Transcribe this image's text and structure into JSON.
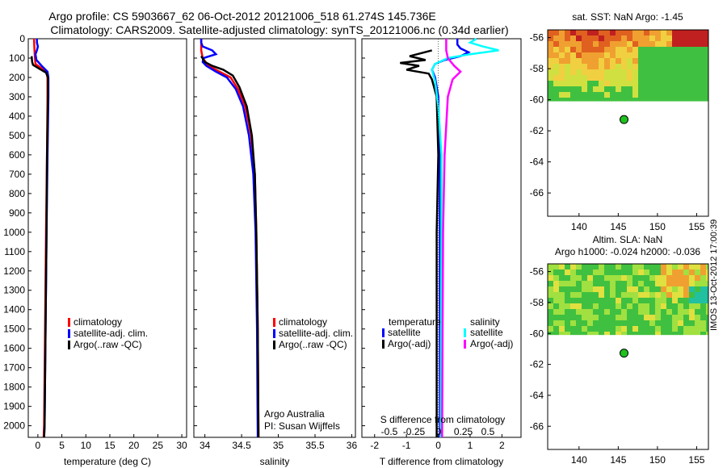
{
  "header": {
    "title_line1": "Argo profile: CS 5903667_62 06-Oct-2012 20121006_518 61.274S 145.736E",
    "title_line2": "Climatology: CARS2009. Satellite-adjusted climatology: synTS_20121006.nc (0.34d earlier)"
  },
  "colors": {
    "climatology": "#ff0000",
    "satellite": "#0000ff",
    "argo": "#000000",
    "cyan": "#00ffff",
    "magenta": "#ff00ff"
  },
  "chart_data": [
    {
      "type": "line",
      "id": "temperature",
      "xlabel": "temperature (deg C)",
      "xlim": [
        -2,
        31
      ],
      "xticks": [
        0,
        5,
        10,
        15,
        20,
        25,
        30
      ],
      "ylim": [
        0,
        2060
      ],
      "yticks": [
        0,
        100,
        200,
        300,
        400,
        500,
        600,
        700,
        800,
        900,
        1000,
        1100,
        1200,
        1300,
        1400,
        1500,
        1600,
        1700,
        1800,
        1900,
        2000
      ],
      "legend": [
        "climatology",
        "satellite-adj. clim.",
        "Argo(..raw -QC)"
      ],
      "series": [
        {
          "name": "climatology",
          "color": "#ff0000",
          "points": [
            [
              -0.8,
              0
            ],
            [
              -0.7,
              60
            ],
            [
              -0.6,
              100
            ],
            [
              -0.5,
              130
            ],
            [
              0.6,
              150
            ],
            [
              1.8,
              175
            ],
            [
              2.0,
              200
            ],
            [
              2.0,
              300
            ],
            [
              1.9,
              600
            ],
            [
              1.7,
              1000
            ],
            [
              1.5,
              1500
            ],
            [
              1.3,
              2000
            ],
            [
              1.2,
              2060
            ]
          ]
        },
        {
          "name": "satellite-adj. clim.",
          "color": "#0000ff",
          "points": [
            [
              -0.2,
              0
            ],
            [
              -0.2,
              20
            ],
            [
              0,
              40
            ],
            [
              -0.2,
              60
            ],
            [
              -0.5,
              80
            ],
            [
              -0.3,
              110
            ],
            [
              0.8,
              140
            ],
            [
              2.0,
              170
            ],
            [
              2.2,
              200
            ],
            [
              2.2,
              300
            ],
            [
              2.0,
              600
            ],
            [
              1.8,
              1000
            ],
            [
              1.6,
              1500
            ],
            [
              1.4,
              2000
            ],
            [
              1.3,
              2060
            ]
          ]
        },
        {
          "name": "Argo(..raw -QC)",
          "color": "#000000",
          "points": [
            [
              -1.3,
              90
            ],
            [
              -1.2,
              120
            ],
            [
              -1.0,
              135
            ],
            [
              0.3,
              155
            ],
            [
              1.7,
              175
            ],
            [
              2.1,
              200
            ],
            [
              2.1,
              300
            ],
            [
              1.9,
              600
            ],
            [
              1.8,
              1000
            ],
            [
              1.6,
              1500
            ],
            [
              1.4,
              2000
            ],
            [
              1.3,
              2060
            ]
          ]
        }
      ]
    },
    {
      "type": "line",
      "id": "salinity",
      "xlabel": "salinity",
      "xlim": [
        33.85,
        36.05
      ],
      "xticks": [
        34,
        34.5,
        35,
        35.5,
        36
      ],
      "ylim": [
        0,
        2060
      ],
      "legend": [
        "climatology",
        "satellite-adj. clim.",
        "Argo(..raw -QC)"
      ],
      "annotations": [
        "Argo Australia",
        "PI: Susan Wijffels"
      ],
      "series": [
        {
          "name": "climatology",
          "color": "#ff0000",
          "points": [
            [
              33.95,
              0
            ],
            [
              33.95,
              60
            ],
            [
              33.97,
              100
            ],
            [
              34.05,
              140
            ],
            [
              34.2,
              170
            ],
            [
              34.35,
              200
            ],
            [
              34.45,
              260
            ],
            [
              34.55,
              350
            ],
            [
              34.63,
              500
            ],
            [
              34.68,
              700
            ],
            [
              34.7,
              1000
            ],
            [
              34.72,
              1500
            ],
            [
              34.73,
              2060
            ]
          ]
        },
        {
          "name": "satellite-adj. clim.",
          "color": "#0000ff",
          "points": [
            [
              33.95,
              0
            ],
            [
              33.95,
              20
            ],
            [
              33.97,
              40
            ],
            [
              34.1,
              60
            ],
            [
              34.15,
              80
            ],
            [
              33.98,
              100
            ],
            [
              33.97,
              120
            ],
            [
              34.02,
              140
            ],
            [
              34.15,
              170
            ],
            [
              34.3,
              200
            ],
            [
              34.42,
              260
            ],
            [
              34.52,
              350
            ],
            [
              34.6,
              500
            ],
            [
              34.66,
              700
            ],
            [
              34.69,
              1000
            ],
            [
              34.71,
              1500
            ],
            [
              34.72,
              2060
            ]
          ]
        },
        {
          "name": "Argo(..raw -QC)",
          "color": "#000000",
          "points": [
            [
              33.95,
              90
            ],
            [
              34.0,
              120
            ],
            [
              34.1,
              140
            ],
            [
              34.25,
              160
            ],
            [
              34.38,
              190
            ],
            [
              34.47,
              250
            ],
            [
              34.57,
              350
            ],
            [
              34.64,
              500
            ],
            [
              34.68,
              700
            ],
            [
              34.7,
              1000
            ],
            [
              34.72,
              1500
            ],
            [
              34.73,
              2060
            ]
          ]
        }
      ]
    },
    {
      "type": "line",
      "id": "difference",
      "xlabel": "T difference from climatology",
      "xlabel_top": "S difference from climatology",
      "xlim": [
        -2.4,
        2.6
      ],
      "xticks": [
        -2,
        -1,
        0,
        1,
        2
      ],
      "xticks_top": [
        -0.5,
        -0.25,
        0,
        0.25,
        0.5
      ],
      "xticks_top_labels": [
        "-0.5",
        "-0.25",
        "0",
        "0.25",
        "0.5"
      ],
      "ylim": [
        0,
        2060
      ],
      "legend": {
        "temperature_header": "temperature",
        "salinity_header": "salinity",
        "temperature_items": [
          "satellite",
          "Argo(-adj)"
        ],
        "salinity_items": [
          "satellite",
          "Argo(-adj)"
        ]
      },
      "series": [
        {
          "name": "T satellite",
          "color": "#0000ff",
          "points": [
            [
              0.6,
              0
            ],
            [
              0.6,
              30
            ],
            [
              0.7,
              50
            ],
            [
              0.95,
              70
            ],
            [
              0.7,
              90
            ],
            [
              0.2,
              110
            ],
            [
              -0.1,
              130
            ],
            [
              -0.2,
              160
            ],
            [
              -0.1,
              200
            ],
            [
              0,
              300
            ],
            [
              0.05,
              600
            ],
            [
              0.05,
              1000
            ],
            [
              0.05,
              2060
            ]
          ]
        },
        {
          "name": "T Argo(-adj)",
          "color": "#000000",
          "points": [
            [
              -0.2,
              60
            ],
            [
              -0.9,
              90
            ],
            [
              -0.4,
              110
            ],
            [
              -1.2,
              125
            ],
            [
              -0.6,
              140
            ],
            [
              -1.0,
              160
            ],
            [
              -0.3,
              180
            ],
            [
              -0.2,
              210
            ],
            [
              -0.05,
              300
            ],
            [
              0,
              600
            ],
            [
              -0.05,
              1000
            ],
            [
              -0.05,
              2060
            ]
          ]
        },
        {
          "name": "S satellite",
          "color": "#00ffff",
          "points": [
            [
              1.2,
              0
            ],
            [
              1.0,
              20
            ],
            [
              1.4,
              40
            ],
            [
              1.9,
              60
            ],
            [
              1.0,
              80
            ],
            [
              0.3,
              100
            ],
            [
              -0.1,
              130
            ],
            [
              -0.2,
              160
            ],
            [
              -0.1,
              220
            ],
            [
              0,
              350
            ],
            [
              0.1,
              600
            ],
            [
              0.1,
              1000
            ],
            [
              0.08,
              2060
            ]
          ]
        },
        {
          "name": "S Argo(-adj)",
          "color": "#ff00ff",
          "points": [
            [
              0.25,
              0
            ],
            [
              0.25,
              60
            ],
            [
              0.3,
              100
            ],
            [
              0.5,
              140
            ],
            [
              0.7,
              170
            ],
            [
              0.45,
              210
            ],
            [
              0.3,
              300
            ],
            [
              0.2,
              600
            ],
            [
              0.15,
              1000
            ],
            [
              0.12,
              2060
            ]
          ]
        }
      ]
    },
    {
      "type": "heatmap",
      "id": "sst_map",
      "title": "sat. SST: NaN Argo: -1.45",
      "xlim": [
        136,
        156.5
      ],
      "ylim": [
        -67.5,
        -55.5
      ],
      "xticks": [
        140,
        145,
        150,
        155
      ],
      "yticks": [
        -56,
        -58,
        -60,
        -62,
        -64,
        -66
      ],
      "argo_position": [
        145.736,
        -61.274
      ]
    },
    {
      "type": "heatmap",
      "id": "sla_map",
      "title_line1": "Altim. SLA: NaN",
      "title_line2": "Argo h1000: -0.024 h2000: -0.036",
      "xlim": [
        136,
        156.5
      ],
      "ylim": [
        -67.5,
        -55.5
      ],
      "xticks": [
        140,
        145,
        150,
        155
      ],
      "yticks": [
        -56,
        -58,
        -60,
        -62,
        -64,
        -66
      ],
      "argo_position": [
        145.736,
        -61.274
      ]
    }
  ],
  "footer": {
    "stamp": "IMOS 13-Oct-2012 17:00:39"
  }
}
